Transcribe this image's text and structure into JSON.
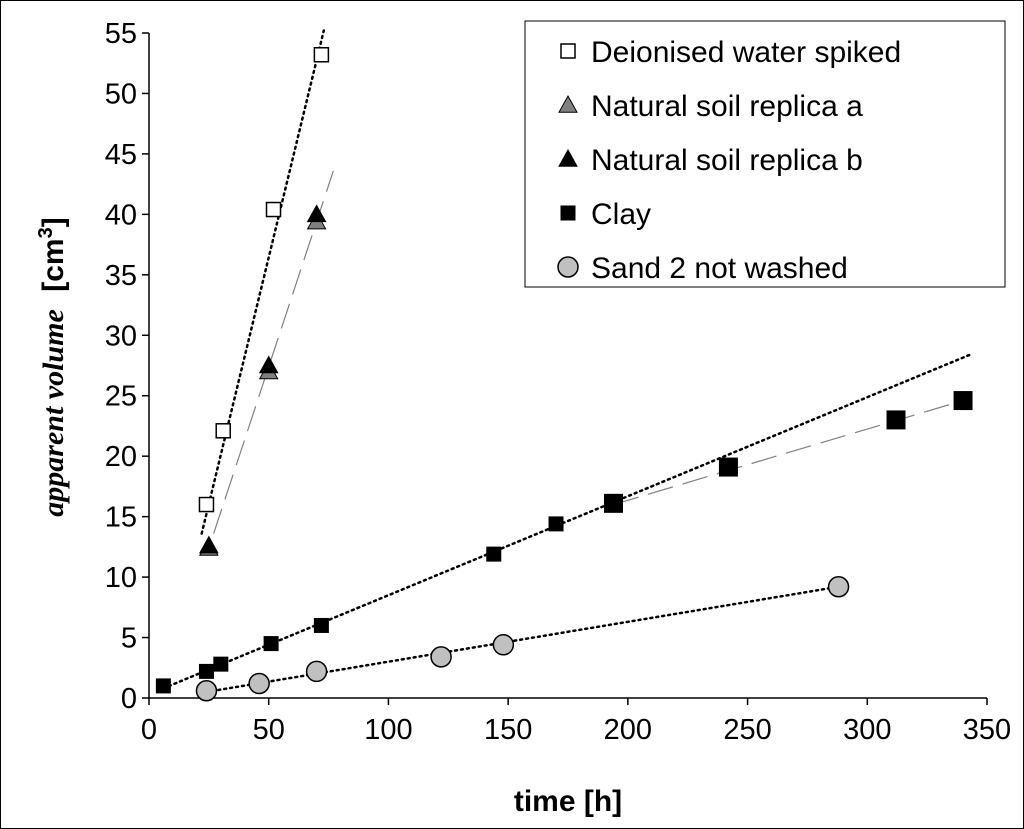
{
  "chart_data": {
    "type": "scatter",
    "xlabel": "time [h]",
    "ylabel_main": "apparent volume",
    "ylabel_unit_prefix": "[cm",
    "ylabel_unit_sup": "3",
    "ylabel_unit_suffix": "]",
    "xlim": [
      0,
      350
    ],
    "ylim": [
      0,
      55
    ],
    "x_ticks": [
      0,
      50,
      100,
      150,
      200,
      250,
      300,
      350
    ],
    "y_ticks": [
      0,
      5,
      10,
      15,
      20,
      25,
      30,
      35,
      40,
      45,
      50,
      55
    ],
    "grid": false,
    "legend_position": "top-right",
    "series": [
      {
        "name": "Deionised water spiked",
        "marker": "square-open",
        "points": [
          [
            24,
            16.0
          ],
          [
            31,
            22.1
          ],
          [
            52,
            40.4
          ],
          [
            72,
            53.2
          ]
        ],
        "trendline": {
          "style": "dotted",
          "x": [
            22,
            73
          ],
          "y": [
            13.6,
            55.2
          ]
        }
      },
      {
        "name": "Natural soil replica a",
        "marker": "triangle-gray",
        "points": [
          [
            25,
            12.4
          ],
          [
            50,
            27.0
          ],
          [
            70,
            39.4
          ]
        ],
        "trendline": {
          "style": "dashed",
          "x": [
            27,
            77
          ],
          "y": [
            13.6,
            43.6
          ]
        }
      },
      {
        "name": "Natural soil replica b",
        "marker": "triangle-black",
        "points": [
          [
            25,
            12.6
          ],
          [
            50,
            27.5
          ],
          [
            70,
            40.0
          ]
        ]
      },
      {
        "name": "Clay",
        "marker": "square-filled",
        "points": [
          [
            6,
            1.0
          ],
          [
            24,
            2.2
          ],
          [
            30,
            2.8
          ],
          [
            51,
            4.5
          ],
          [
            72,
            6.0
          ],
          [
            144,
            11.9
          ],
          [
            170,
            14.4
          ],
          [
            194,
            16.1
          ],
          [
            242,
            19.1
          ],
          [
            312,
            23.0
          ],
          [
            340,
            24.6
          ]
        ],
        "trendlines": [
          {
            "style": "dotted",
            "x": [
              6,
              343
            ],
            "y": [
              0.8,
              28.4
            ]
          },
          {
            "style": "dashed",
            "x": [
              194,
              340
            ],
            "y": [
              16.0,
              24.6
            ]
          }
        ]
      },
      {
        "name": "Sand 2 not washed",
        "marker": "circle-gray",
        "points": [
          [
            24,
            0.6
          ],
          [
            46,
            1.2
          ],
          [
            70,
            2.2
          ],
          [
            122,
            3.4
          ],
          [
            148,
            4.4
          ],
          [
            288,
            9.2
          ]
        ],
        "trendline": {
          "style": "dotted",
          "x": [
            24,
            288
          ],
          "y": [
            0.5,
            9.2
          ]
        }
      }
    ]
  },
  "colors": {
    "open_marker_fill": "#ffffff",
    "gray_fill": "#c0c0c0",
    "triangle_gray": "#808080",
    "black": "#000000",
    "dashed_line": "#808080"
  }
}
